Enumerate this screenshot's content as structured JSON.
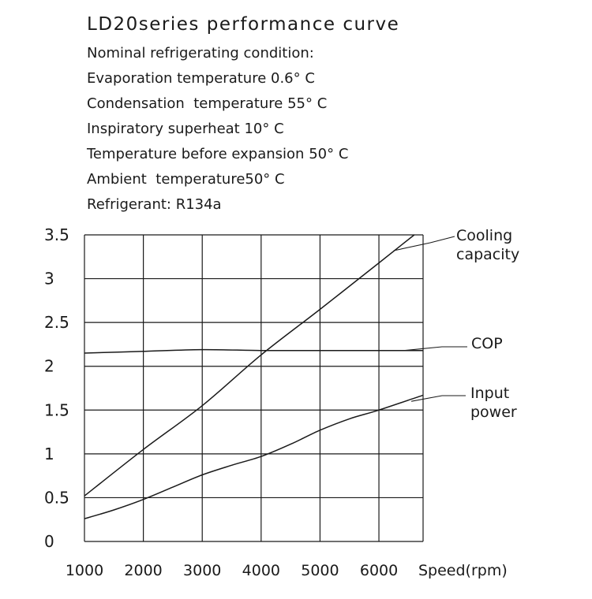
{
  "header": {
    "title": "LD20series performance curve",
    "conditions": [
      "Nominal refrigerating condition:",
      "Evaporation temperature 0.6° C",
      "Condensation  temperature 55° C",
      "Inspiratory superheat 10° C",
      "Temperature before expansion 50° C",
      "Ambient  temperature50° C",
      "Refrigerant: R134a"
    ]
  },
  "chart_data": {
    "type": "line",
    "title": "LD20series performance curve",
    "xlabel": "Speed(rpm)",
    "ylabel": "",
    "xlim": [
      1000,
      6750
    ],
    "ylim": [
      0,
      3.5
    ],
    "x_ticks": [
      "1000",
      "2000",
      "3000",
      "4000",
      "5000",
      "6000"
    ],
    "y_ticks": [
      "0",
      "0.5",
      "1",
      "1.5",
      "2",
      "2.5",
      "3",
      "3.5"
    ],
    "grid": true,
    "legend": "right-side leader labels",
    "series": [
      {
        "name": "Cooling capacity",
        "x": [
          1000,
          2000,
          3000,
          4000,
          5000,
          6000,
          6600
        ],
        "y": [
          0.52,
          1.05,
          1.55,
          2.13,
          2.65,
          3.18,
          3.5
        ]
      },
      {
        "name": "COP",
        "x": [
          1000,
          2000,
          3000,
          4000,
          5000,
          6000,
          6750
        ],
        "y": [
          2.15,
          2.17,
          2.19,
          2.18,
          2.18,
          2.18,
          2.18
        ]
      },
      {
        "name": "Input power",
        "x": [
          1000,
          1500,
          2000,
          2500,
          3000,
          3500,
          4000,
          4500,
          5000,
          5500,
          6000,
          6750
        ],
        "y": [
          0.26,
          0.36,
          0.48,
          0.62,
          0.76,
          0.87,
          0.97,
          1.11,
          1.27,
          1.4,
          1.5,
          1.67
        ]
      }
    ],
    "series_labels": {
      "cooling": [
        "Cooling",
        "capacity"
      ],
      "cop": [
        "COP"
      ],
      "input": [
        "Input",
        "power"
      ]
    }
  }
}
